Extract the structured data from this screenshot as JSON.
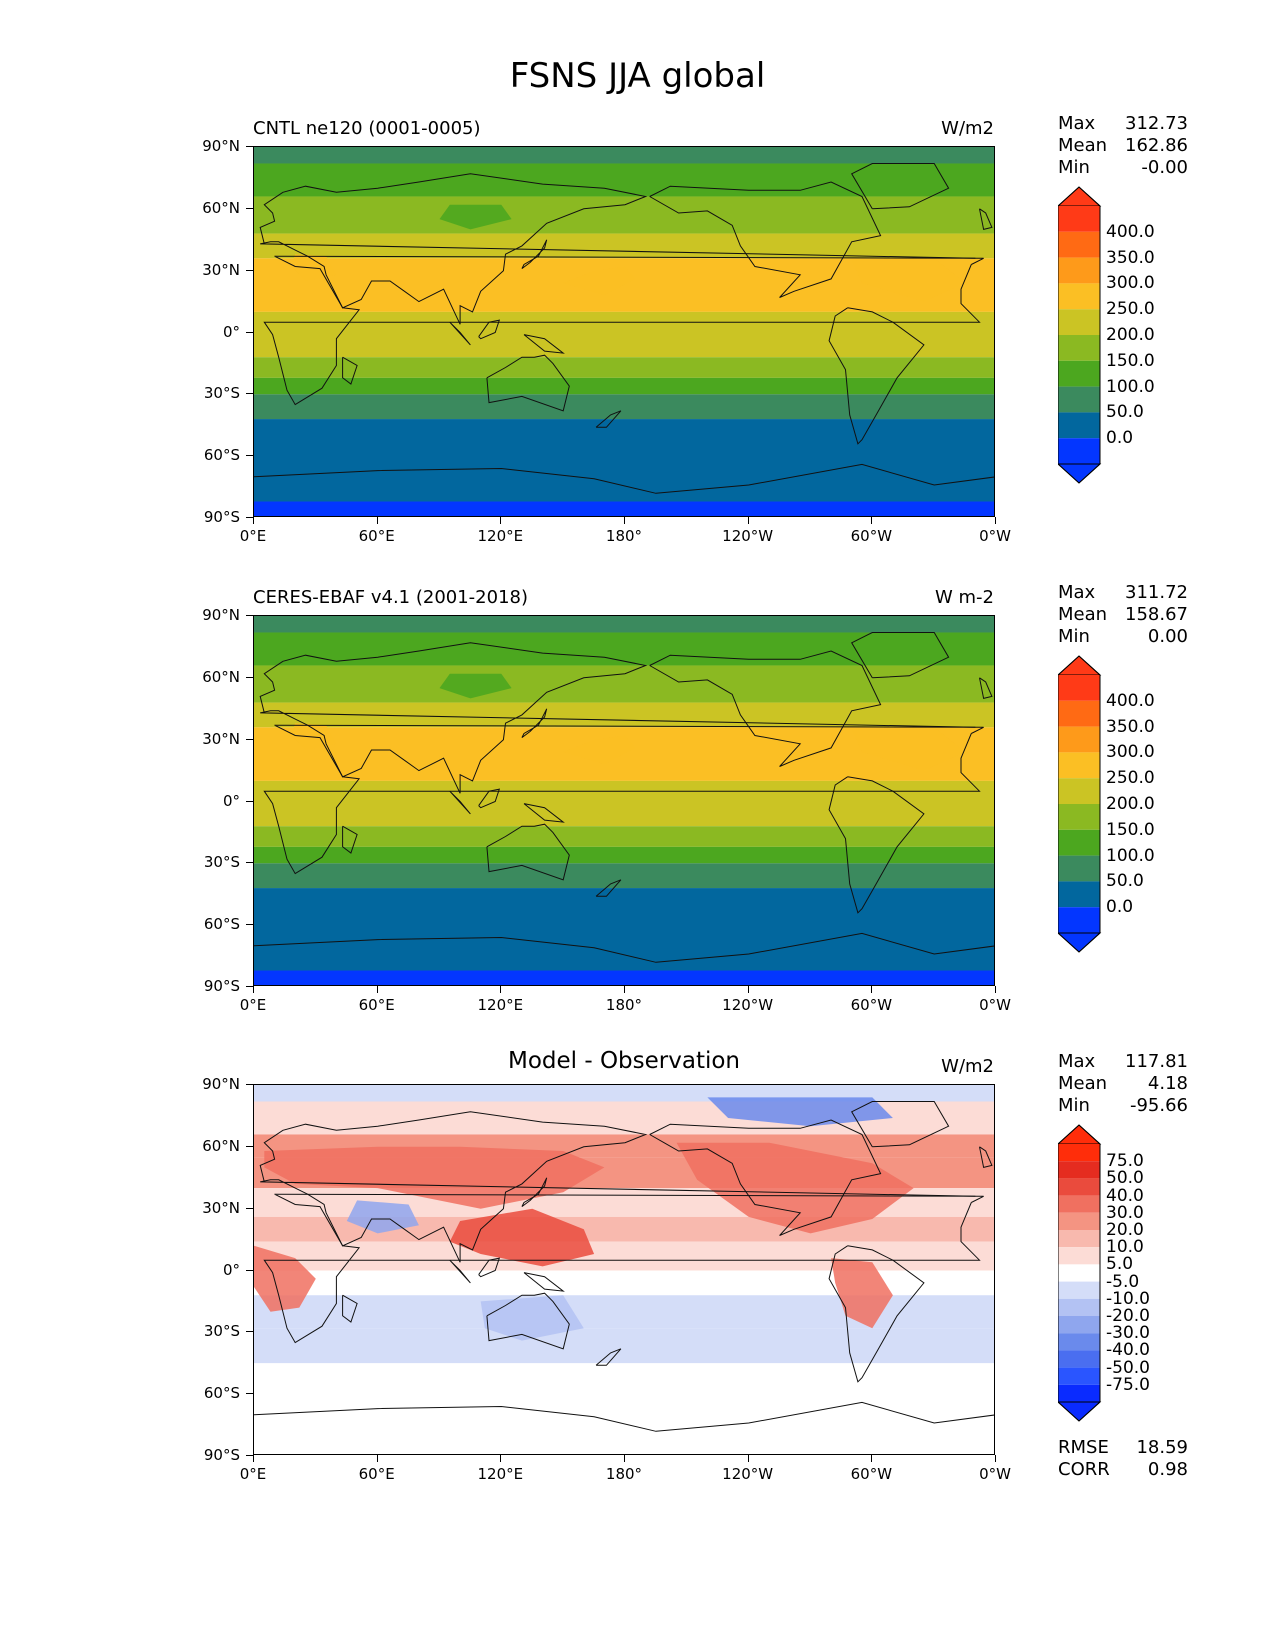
{
  "figure": {
    "title": "FSNS JJA global"
  },
  "axes": {
    "xticks": [
      "0°E",
      "60°E",
      "120°E",
      "180°",
      "120°W",
      "60°W",
      "0°W"
    ],
    "yticks": [
      "90°N",
      "60°N",
      "30°N",
      "0°",
      "30°S",
      "60°S",
      "90°S"
    ]
  },
  "panels": [
    {
      "title": "CNTL ne120 (0001-0005)",
      "units": "W/m2",
      "stats": [
        {
          "label": "Max",
          "value": "312.73"
        },
        {
          "label": "Mean",
          "value": "162.86"
        },
        {
          "label": "Min",
          "value": "-0.00"
        }
      ],
      "colorbar_labels": [
        "400.0",
        "350.0",
        "300.0",
        "250.0",
        "200.0",
        "150.0",
        "100.0",
        "50.0",
        "0.0"
      ]
    },
    {
      "title": "CERES-EBAF v4.1 (2001-2018)",
      "units": "W m-2",
      "stats": [
        {
          "label": "Max",
          "value": "311.72"
        },
        {
          "label": "Mean",
          "value": "158.67"
        },
        {
          "label": "Min",
          "value": "0.00"
        }
      ],
      "colorbar_labels": [
        "400.0",
        "350.0",
        "300.0",
        "250.0",
        "200.0",
        "150.0",
        "100.0",
        "50.0",
        "0.0"
      ]
    },
    {
      "title": "Model - Observation",
      "units": "W/m2",
      "stats": [
        {
          "label": "Max",
          "value": "117.81"
        },
        {
          "label": "Mean",
          "value": "4.18"
        },
        {
          "label": "Min",
          "value": "-95.66"
        }
      ],
      "colorbar_labels": [
        "75.0",
        "50.0",
        "40.0",
        "30.0",
        "20.0",
        "10.0",
        "5.0",
        "-5.0",
        "-10.0",
        "-20.0",
        "-30.0",
        "-40.0",
        "-50.0",
        "-75.0"
      ],
      "footer_stats": [
        {
          "label": "RMSE",
          "value": "18.59"
        },
        {
          "label": "CORR",
          "value": "0.98"
        }
      ]
    }
  ],
  "colors": {
    "field": [
      "#0336ff",
      "#02679e",
      "#3b8a5e",
      "#4ca71f",
      "#8bb922",
      "#cbc424",
      "#fbbf24",
      "#fe9a1a",
      "#ff6a14",
      "#ff3a17"
    ],
    "diff": [
      "#0a2bff",
      "#2a55ff",
      "#4a6ef0",
      "#6a8aec",
      "#8fa6ee",
      "#b3c2f3",
      "#d4ddf8",
      "#ffffff",
      "#fcdcd6",
      "#f8b9ae",
      "#f49482",
      "#f07060",
      "#ea4b3d",
      "#e52c20",
      "#ff2d0a"
    ]
  },
  "chart_data": [
    {
      "type": "heatmap",
      "title": "CNTL ne120 (0001-0005)",
      "units": "W/m2",
      "x_range": [
        0,
        360
      ],
      "y_range": [
        -90,
        90
      ],
      "levels": [
        0,
        50,
        100,
        150,
        200,
        250,
        300,
        350,
        400
      ],
      "max": 312.73,
      "mean": 162.86,
      "min": -0.0
    },
    {
      "type": "heatmap",
      "title": "CERES-EBAF v4.1 (2001-2018)",
      "units": "W m-2",
      "x_range": [
        0,
        360
      ],
      "y_range": [
        -90,
        90
      ],
      "levels": [
        0,
        50,
        100,
        150,
        200,
        250,
        300,
        350,
        400
      ],
      "max": 311.72,
      "mean": 158.67,
      "min": 0.0
    },
    {
      "type": "heatmap",
      "title": "Model - Observation",
      "units": "W/m2",
      "x_range": [
        0,
        360
      ],
      "y_range": [
        -90,
        90
      ],
      "levels": [
        -75,
        -50,
        -40,
        -30,
        -20,
        -10,
        -5,
        5,
        10,
        20,
        30,
        40,
        50,
        75
      ],
      "max": 117.81,
      "mean": 4.18,
      "min": -95.66,
      "rmse": 18.59,
      "corr": 0.98
    }
  ]
}
